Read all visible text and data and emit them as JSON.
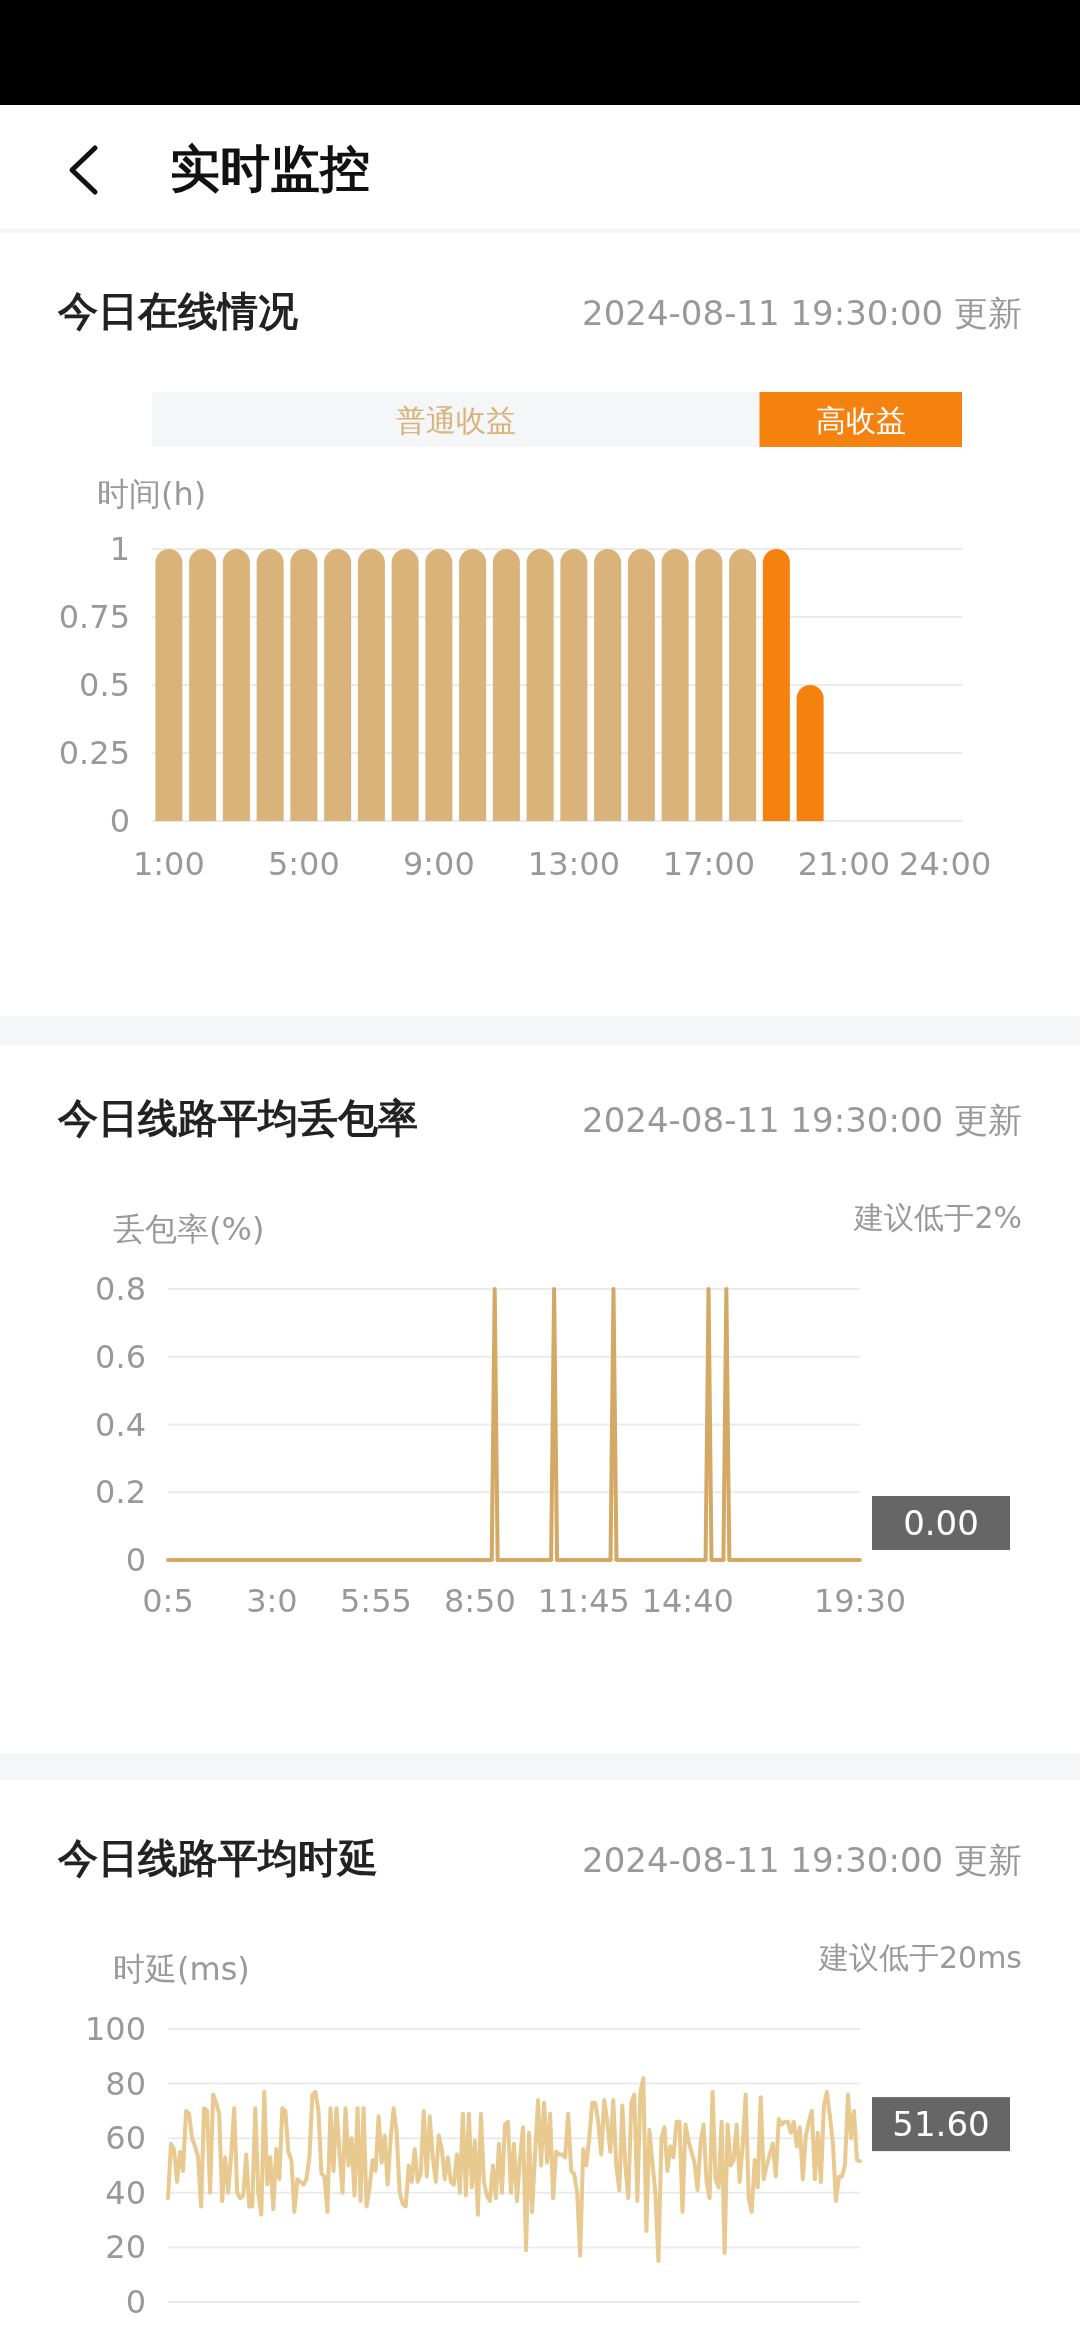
{
  "chart_data": [
    {
      "type": "bar",
      "title": "今日在线情况",
      "subtitle": "2024-08-11 19:30:00 更新",
      "ylabel": "时间(h)",
      "annotations": [
        "实时监控"
      ],
      "categories": [
        "1:00",
        null,
        null,
        null,
        "5:00",
        null,
        null,
        null,
        "9:00",
        null,
        null,
        null,
        "13:00",
        null,
        null,
        null,
        "17:00",
        null,
        null,
        null,
        "21:00",
        null,
        null,
        "24:00"
      ],
      "stacked": true,
      "series": [
        {
          "name": "普通收益",
          "color": "#d9b37a",
          "values": [
            1,
            1,
            1,
            1,
            1,
            1,
            1,
            1,
            1,
            1,
            1,
            1,
            1,
            1,
            1,
            1,
            1,
            1,
            null,
            null,
            null,
            null,
            null,
            null
          ]
        },
        {
          "name": "高收益",
          "color": "#f5820f",
          "values": [
            null,
            null,
            null,
            null,
            null,
            null,
            null,
            null,
            null,
            null,
            null,
            null,
            null,
            null,
            null,
            null,
            null,
            null,
            1,
            0.5,
            null,
            null,
            null,
            null
          ]
        }
      ],
      "ylim": [
        0,
        1
      ],
      "yticks": [
        0,
        0.25,
        0.5,
        0.75,
        1
      ],
      "grid": "y",
      "legend": "top"
    },
    {
      "type": "line",
      "title": "今日线路平均丢包率",
      "subtitle": "2024-08-11 19:30:00 更新",
      "ylabel": "丢包率(%)",
      "annotations": [
        "建议低于2%",
        {
          "text": "0.00",
          "x": 19.5,
          "y": 0
        }
      ],
      "x": [
        0.083,
        9.167,
        9.25,
        9.333,
        10.833,
        10.917,
        11.0,
        12.5,
        12.583,
        12.667,
        15.167,
        15.25,
        15.333,
        15.667,
        15.75,
        15.833,
        19.5
      ],
      "series": [
        {
          "color": "#d4a865",
          "values": [
            0,
            0,
            0.8,
            0,
            0,
            0.8,
            0,
            0,
            0.8,
            0,
            0,
            0.8,
            0,
            0,
            0.8,
            0,
            0
          ]
        }
      ],
      "xlim": [
        0.083,
        19.5
      ],
      "xticks": [
        {
          "value": 0.083,
          "label": "0:5"
        },
        {
          "value": 3,
          "label": "3:0"
        },
        {
          "value": 5.917,
          "label": "5:55"
        },
        {
          "value": 8.833,
          "label": "8:50"
        },
        {
          "value": 11.75,
          "label": "11:45"
        },
        {
          "value": 14.667,
          "label": "14:40"
        },
        {
          "value": 19.5,
          "label": "19:30"
        }
      ],
      "ylim": [
        0,
        0.8
      ],
      "yticks": [
        0,
        0.2,
        0.4,
        0.6,
        0.8
      ],
      "grid": "y",
      "marker": "none"
    },
    {
      "type": "line",
      "title": "今日线路平均时延",
      "subtitle": "2024-08-11 19:30:00 更新",
      "ylabel": "时延(ms)",
      "annotations": [
        "建议低于20ms",
        "51.60"
      ],
      "categories": [
        null,
        null,
        null,
        null,
        null,
        null,
        null,
        null,
        null,
        null,
        null,
        null,
        null,
        null,
        null,
        null,
        null,
        null,
        null,
        null,
        null,
        null,
        null,
        null,
        null,
        null,
        null,
        null,
        null,
        null,
        null,
        null,
        null,
        null,
        null,
        null,
        null,
        null,
        null,
        null,
        null,
        null,
        null,
        null,
        null,
        null,
        null,
        null,
        null,
        null,
        null,
        null,
        null,
        null,
        null,
        null,
        null,
        null,
        null,
        null,
        null,
        null,
        null,
        null,
        null,
        null,
        null,
        null,
        null,
        null,
        null,
        null,
        null,
        null,
        null,
        null,
        null,
        null,
        null,
        null,
        null,
        null,
        null,
        null,
        null,
        null,
        null,
        null,
        null,
        null,
        null,
        null,
        null,
        null,
        null,
        null,
        null,
        null,
        null,
        null,
        null,
        null,
        null,
        null,
        null,
        null,
        null,
        null,
        null,
        null,
        null,
        null,
        null,
        null,
        null,
        null,
        null,
        null,
        null,
        null,
        null,
        null,
        null,
        null,
        null,
        null,
        null,
        null,
        null,
        null,
        null,
        null,
        null,
        null,
        null,
        null,
        null,
        null,
        null,
        null,
        null,
        null,
        null,
        null,
        null,
        null,
        null,
        null,
        null,
        null,
        null,
        null,
        null,
        null,
        null,
        null,
        null,
        null,
        null,
        null,
        null,
        null,
        null,
        null,
        null,
        null,
        null,
        null,
        null,
        null,
        null,
        null,
        null,
        null,
        null,
        null,
        null,
        null,
        null,
        null,
        null,
        null,
        null,
        null,
        null,
        null,
        null,
        null,
        null,
        null,
        null,
        null,
        null,
        null,
        null,
        null,
        null,
        null,
        null,
        null,
        null,
        null,
        null,
        null,
        null,
        null,
        null,
        null,
        null,
        null,
        null,
        null,
        null,
        null,
        null,
        null,
        null,
        null,
        null,
        null,
        null,
        null,
        null,
        null,
        null,
        null,
        null,
        null,
        null,
        null,
        null
      ],
      "series": [
        {
          "color": "#e8c98f",
          "values": [
            38,
            58,
            56,
            44,
            55,
            48,
            70,
            69,
            60,
            57,
            53,
            35,
            71,
            70,
            40,
            76,
            73,
            69,
            37,
            53,
            40,
            54,
            71,
            40,
            38,
            39,
            54,
            35,
            35,
            71,
            40,
            32,
            77,
            43,
            53,
            34,
            56,
            45,
            71,
            70,
            55,
            52,
            33,
            45,
            44,
            43,
            45,
            53,
            76,
            77,
            70,
            47,
            46,
            33,
            71,
            48,
            71,
            55,
            40,
            71,
            50,
            60,
            39,
            71,
            37,
            71,
            35,
            42,
            52,
            48,
            68,
            51,
            61,
            43,
            60,
            71,
            62,
            40,
            36,
            35,
            50,
            44,
            56,
            44,
            47,
            70,
            46,
            68,
            53,
            44,
            61,
            56,
            45,
            53,
            44,
            43,
            54,
            40,
            69,
            39,
            69,
            42,
            59,
            32,
            69,
            44,
            39,
            37,
            50,
            38,
            58,
            40,
            65,
            66,
            40,
            58,
            37,
            53,
            64,
            19,
            62,
            33,
            54,
            74,
            50,
            73,
            51,
            69,
            38,
            55,
            54,
            54,
            53,
            69,
            48,
            47,
            40,
            17,
            56,
            50,
            60,
            73,
            73,
            66,
            54,
            74,
            66,
            55,
            74,
            50,
            41,
            72,
            50,
            38,
            73,
            76,
            37,
            77,
            82,
            26,
            63,
            51,
            40,
            15,
            60,
            64,
            48,
            57,
            53,
            66,
            66,
            33,
            65,
            59,
            55,
            51,
            41,
            58,
            65,
            44,
            38,
            77,
            45,
            42,
            66,
            18,
            65,
            50,
            52,
            65,
            44,
            57,
            76,
            38,
            33,
            52,
            42,
            75,
            45,
            50,
            54,
            58,
            46,
            67,
            65,
            66,
            66,
            62,
            66,
            57,
            64,
            45,
            61,
            66,
            70,
            45,
            62,
            44,
            72,
            77,
            68,
            58,
            37,
            46,
            46,
            50,
            76,
            60,
            70,
            52,
            51.6
          ]
        }
      ],
      "ylim": [
        0,
        100
      ],
      "yticks": [
        0,
        20,
        40,
        60,
        80,
        100
      ],
      "grid": "y",
      "marker": "none"
    }
  ]
}
